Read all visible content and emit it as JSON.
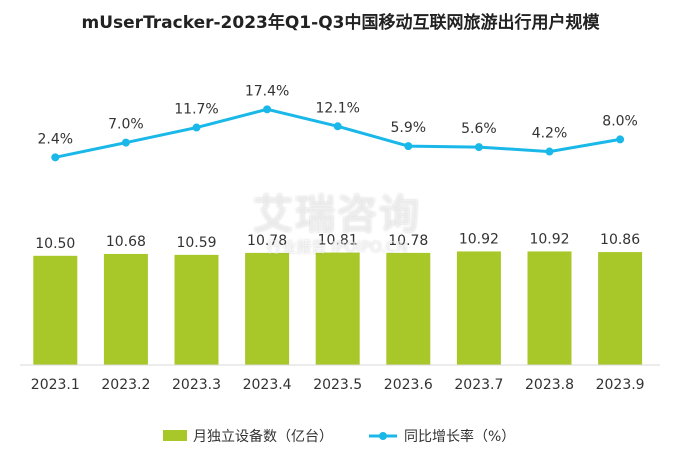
{
  "chart_data": {
    "type": "bar",
    "title": "mUserTracker-2023年Q1-Q3中国移动互联网旅游出行用户规模",
    "categories": [
      "2023.1",
      "2023.2",
      "2023.3",
      "2023.4",
      "2023.5",
      "2023.6",
      "2023.7",
      "2023.8",
      "2023.9"
    ],
    "series": [
      {
        "name": "月独立设备数（亿台）",
        "type": "bar",
        "color": "#a8c82a",
        "values": [
          10.5,
          10.68,
          10.59,
          10.78,
          10.81,
          10.78,
          10.92,
          10.92,
          10.86
        ],
        "labels": [
          "10.50",
          "10.68",
          "10.59",
          "10.78",
          "10.81",
          "10.78",
          "10.92",
          "10.92",
          "10.86"
        ]
      },
      {
        "name": "同比增长率（%）",
        "type": "line",
        "color": "#1ab8e8",
        "values": [
          2.4,
          7.0,
          11.7,
          17.4,
          12.1,
          5.9,
          5.6,
          4.2,
          8.0
        ],
        "labels": [
          "2.4%",
          "7.0%",
          "11.7%",
          "17.4%",
          "12.1%",
          "5.9%",
          "5.6%",
          "4.2%",
          "8.0%"
        ]
      }
    ],
    "legend_position": "bottom",
    "grid": false
  },
  "watermark": {
    "main": "艾瑞咨询",
    "sub": "行业报告 IPOIPO.CN"
  }
}
